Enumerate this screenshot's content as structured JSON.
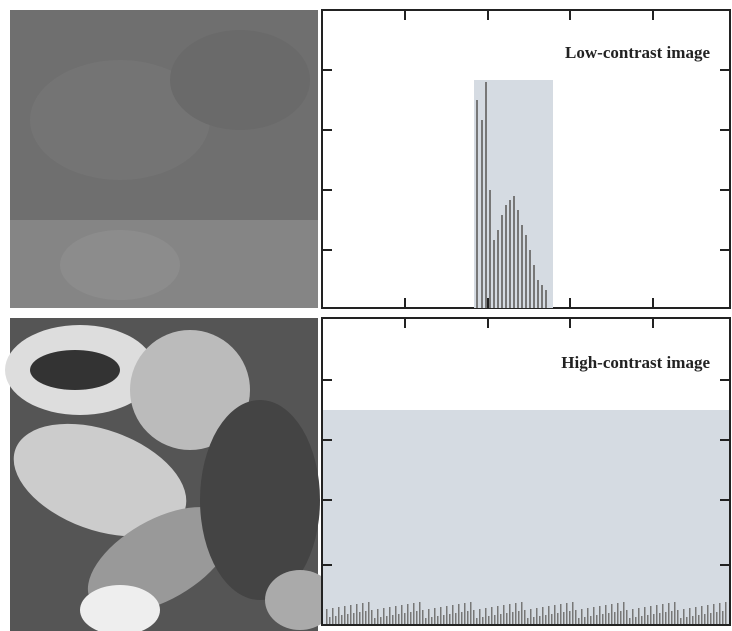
{
  "panels": [
    {
      "label": "Low-contrast image"
    },
    {
      "label": "High-contrast image"
    }
  ]
}
